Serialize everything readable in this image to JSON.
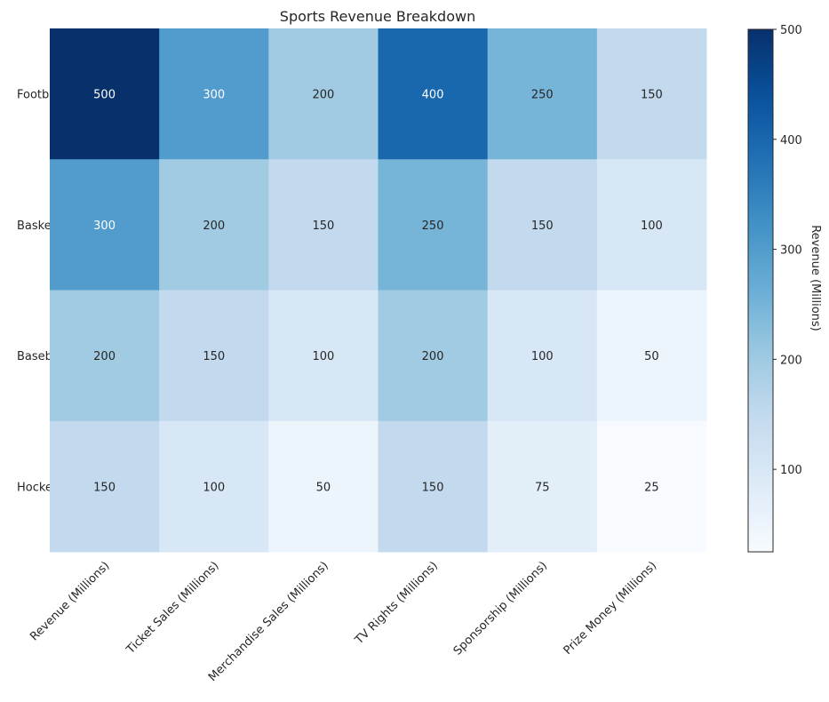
{
  "chart_data": {
    "type": "heatmap",
    "title": "Sports Revenue Breakdown",
    "rows": [
      "Football",
      "Basketball",
      "Baseball",
      "Hockey"
    ],
    "row_labels_visible": [
      "Footb",
      "Basket",
      "Baseb",
      "Hocke"
    ],
    "columns": [
      "Revenue (Millions)",
      "Ticket Sales (Millions)",
      "Merchandise Sales (Millions)",
      "TV Rights (Millions)",
      "Sponsorship (Millions)",
      "Prize Money (Millions)"
    ],
    "values": [
      [
        500,
        300,
        200,
        400,
        250,
        150
      ],
      [
        300,
        200,
        150,
        250,
        150,
        100
      ],
      [
        200,
        150,
        100,
        200,
        100,
        50
      ],
      [
        150,
        100,
        50,
        150,
        75,
        25
      ]
    ],
    "colormap": "Blues",
    "vmin": 25,
    "vmax": 500,
    "colorbar": {
      "label": "Revenue (Millions)",
      "ticks": [
        100,
        200,
        300,
        400,
        500
      ]
    },
    "annotations": true
  }
}
